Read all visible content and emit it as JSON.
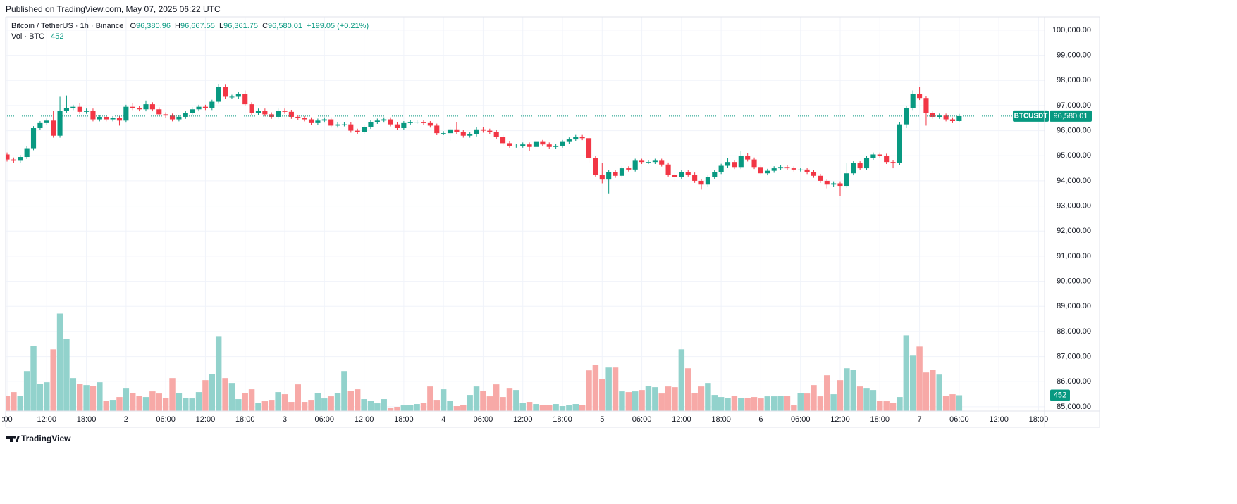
{
  "header": {
    "published": "Published on TradingView.com, May 07, 2025 06:22 UTC"
  },
  "chart_data": {
    "type": "candlestick",
    "title": "Bitcoin / TetherUS · 1h · Binance",
    "symbol": "BTCUSDT",
    "legend": {
      "labels": [
        "O",
        "H",
        "L",
        "C"
      ],
      "value_labels": [
        "96,380.96",
        "96,667.55",
        "96,361.75",
        "96,580.01"
      ],
      "change_label": "+199.05 (+0.21%)",
      "volume_title": "Vol · BTC"
    },
    "open": [
      95050,
      94850,
      94800,
      94950,
      95300,
      96100,
      96300,
      96400,
      95800,
      96800,
      96900,
      96950,
      96750,
      96800,
      96450,
      96550,
      96450,
      96500,
      96400,
      96950,
      96900,
      96850,
      97050,
      96850,
      96650,
      96600,
      96450,
      96550,
      96700,
      96850,
      96950,
      96900,
      97150,
      97750,
      97350,
      97350,
      97450,
      97050,
      96700,
      96800,
      96650,
      96550,
      96800,
      96750,
      96550,
      96500,
      96450,
      96300,
      96400,
      96450,
      96200,
      96250,
      96250,
      96000,
      95950,
      96150,
      96350,
      96400,
      96450,
      96250,
      96100,
      96300,
      96350,
      96350,
      96300,
      96200,
      95900,
      95900,
      96050,
      95950,
      95800,
      95850,
      96050,
      96000,
      95950,
      95750,
      95500,
      95400,
      95400,
      95450,
      95350,
      95550,
      95450,
      95350,
      95400,
      95550,
      95650,
      95750,
      95700,
      94900,
      94250,
      94050,
      94350,
      94200,
      94500,
      94450,
      94800,
      94750,
      94750,
      94800,
      94650,
      94250,
      94150,
      94350,
      94250,
      94000,
      93850,
      94150,
      94350,
      94600,
      94750,
      94550,
      95000,
      94850,
      94550,
      94300,
      94400,
      94500,
      94550,
      94500,
      94450,
      94450,
      94350,
      94200,
      94000,
      93850,
      93900,
      93800,
      94300,
      94700,
      94500,
      94900,
      95050,
      95000,
      94750,
      94700,
      96250,
      96900,
      97450,
      97300,
      96700,
      96550,
      96600,
      96450,
      96380.96
    ],
    "high": [
      95130,
      94930,
      95030,
      95380,
      96180,
      96380,
      96480,
      96800,
      97350,
      97400,
      97030,
      97100,
      96880,
      96880,
      96630,
      96630,
      96580,
      96580,
      97030,
      97100,
      96980,
      97200,
      97130,
      96930,
      96730,
      96680,
      96630,
      96780,
      96930,
      97030,
      97030,
      97230,
      97850,
      97830,
      97430,
      97530,
      97600,
      97130,
      96880,
      96880,
      96730,
      96880,
      96880,
      96830,
      96630,
      96580,
      96530,
      96480,
      96530,
      96530,
      96330,
      96330,
      96330,
      96080,
      96230,
      96430,
      96480,
      96530,
      96530,
      96330,
      96380,
      96430,
      96430,
      96430,
      96380,
      96280,
      95980,
      96130,
      96350,
      96030,
      95930,
      96130,
      96130,
      96080,
      96030,
      95830,
      95580,
      95480,
      95530,
      95530,
      95630,
      95630,
      95530,
      95480,
      95630,
      95730,
      95830,
      95830,
      95780,
      94980,
      94700,
      94430,
      94430,
      94580,
      94580,
      94880,
      94880,
      94830,
      94880,
      94880,
      94730,
      94330,
      94430,
      94430,
      94330,
      94080,
      94230,
      94430,
      94680,
      94900,
      94830,
      95200,
      95100,
      94930,
      94630,
      94480,
      94580,
      94630,
      94630,
      94580,
      94530,
      94530,
      94430,
      94280,
      94080,
      93980,
      93980,
      94700,
      94780,
      94780,
      94980,
      95130,
      95130,
      95080,
      94830,
      96330,
      96980,
      97600,
      97750,
      97380,
      96780,
      96680,
      96680,
      96530,
      96667.55
    ],
    "low": [
      94770,
      94720,
      94720,
      94870,
      95220,
      96020,
      96220,
      95720,
      95720,
      96720,
      96820,
      96670,
      96670,
      96370,
      96370,
      96370,
      96370,
      96200,
      96320,
      96820,
      96770,
      96770,
      96770,
      96570,
      96520,
      96370,
      96370,
      96470,
      96620,
      96770,
      96820,
      96820,
      97070,
      97270,
      97270,
      97270,
      96970,
      96620,
      96620,
      96570,
      96470,
      96470,
      96670,
      96470,
      96420,
      96370,
      96220,
      96220,
      96320,
      96120,
      96120,
      96170,
      95920,
      95870,
      95870,
      96070,
      96270,
      96320,
      96170,
      96020,
      96020,
      96220,
      96270,
      96220,
      96120,
      95820,
      95820,
      95600,
      95870,
      95720,
      95720,
      95770,
      95920,
      95870,
      95670,
      95420,
      95320,
      95320,
      95320,
      95200,
      95270,
      95370,
      95270,
      95270,
      95320,
      95470,
      95570,
      95620,
      94700,
      94170,
      93900,
      93500,
      94120,
      94120,
      94370,
      94370,
      94670,
      94670,
      94670,
      94570,
      94170,
      94000,
      94070,
      94170,
      93920,
      93650,
      93770,
      94070,
      94270,
      94520,
      94470,
      94470,
      94770,
      94470,
      94220,
      94220,
      94320,
      94420,
      94420,
      94370,
      94370,
      94270,
      94120,
      93920,
      93700,
      93770,
      93400,
      93720,
      94220,
      94420,
      94420,
      94820,
      94920,
      94670,
      94500,
      94620,
      96100,
      96820,
      97220,
      96200,
      96470,
      96470,
      96370,
      96300,
      96361.75
    ],
    "close": [
      94850,
      94800,
      94950,
      95300,
      96100,
      96300,
      96400,
      95800,
      96800,
      96900,
      96950,
      96750,
      96800,
      96450,
      96550,
      96450,
      96500,
      96400,
      96950,
      96900,
      96850,
      97050,
      96850,
      96650,
      96600,
      96450,
      96550,
      96700,
      96850,
      96950,
      96900,
      97150,
      97750,
      97350,
      97350,
      97450,
      97050,
      96700,
      96800,
      96650,
      96550,
      96800,
      96750,
      96550,
      96500,
      96450,
      96300,
      96400,
      96450,
      96200,
      96250,
      96250,
      96000,
      95950,
      96150,
      96350,
      96400,
      96450,
      96250,
      96100,
      96300,
      96350,
      96350,
      96300,
      96200,
      95900,
      95900,
      96050,
      95950,
      95800,
      95850,
      96050,
      96000,
      95950,
      95750,
      95500,
      95400,
      95400,
      95450,
      95350,
      95550,
      95450,
      95350,
      95400,
      95550,
      95650,
      95750,
      95700,
      94900,
      94250,
      94050,
      94350,
      94200,
      94500,
      94450,
      94800,
      94750,
      94750,
      94800,
      94650,
      94250,
      94150,
      94350,
      94250,
      94000,
      93850,
      94150,
      94350,
      94600,
      94750,
      94550,
      95000,
      94850,
      94550,
      94300,
      94400,
      94500,
      94550,
      94500,
      94450,
      94450,
      94350,
      94200,
      94000,
      93850,
      93900,
      93800,
      94300,
      94700,
      94500,
      94900,
      95050,
      95000,
      94750,
      94700,
      96250,
      96900,
      97450,
      97300,
      96700,
      96550,
      96600,
      96450,
      96380.96,
      96580.01
    ],
    "volume": [
      440,
      540,
      440,
      1140,
      1860,
      780,
      820,
      1760,
      2780,
      2060,
      940,
      780,
      740,
      720,
      820,
      300,
      320,
      400,
      660,
      520,
      440,
      400,
      560,
      500,
      380,
      940,
      520,
      380,
      360,
      540,
      880,
      1060,
      2120,
      940,
      800,
      340,
      520,
      620,
      240,
      280,
      320,
      540,
      480,
      260,
      760,
      260,
      320,
      520,
      360,
      420,
      520,
      1140,
      580,
      620,
      340,
      300,
      220,
      340,
      100,
      120,
      160,
      180,
      200,
      240,
      700,
      320,
      620,
      300,
      140,
      180,
      460,
      700,
      580,
      420,
      760,
      400,
      660,
      600,
      240,
      260,
      200,
      180,
      180,
      200,
      140,
      160,
      200,
      180,
      1160,
      1320,
      920,
      1240,
      1240,
      560,
      540,
      560,
      600,
      720,
      680,
      500,
      700,
      680,
      1760,
      1220,
      520,
      700,
      800,
      460,
      400,
      380,
      440,
      380,
      380,
      400,
      360,
      420,
      420,
      440,
      440,
      160,
      520,
      500,
      740,
      420,
      1020,
      480,
      880,
      1220,
      1180,
      700,
      660,
      600,
      300,
      280,
      240,
      400,
      2160,
      1580,
      1840,
      1100,
      1180,
      1040,
      440,
      480,
      452
    ],
    "xlim": [
      0,
      156.7
    ],
    "xticks": [
      {
        "value": 0,
        "label": ":00"
      },
      {
        "value": 6,
        "label": "12:00"
      },
      {
        "value": 12,
        "label": "18:00"
      },
      {
        "value": 18,
        "label": "2"
      },
      {
        "value": 24,
        "label": "06:00"
      },
      {
        "value": 30,
        "label": "12:00"
      },
      {
        "value": 36,
        "label": "18:00"
      },
      {
        "value": 42,
        "label": "3"
      },
      {
        "value": 48,
        "label": "06:00"
      },
      {
        "value": 54,
        "label": "12:00"
      },
      {
        "value": 60,
        "label": "18:00"
      },
      {
        "value": 66,
        "label": "4"
      },
      {
        "value": 72,
        "label": "06:00"
      },
      {
        "value": 78,
        "label": "12:00"
      },
      {
        "value": 84,
        "label": "18:00"
      },
      {
        "value": 90,
        "label": "5"
      },
      {
        "value": 96,
        "label": "06:00"
      },
      {
        "value": 102,
        "label": "12:00"
      },
      {
        "value": 108,
        "label": "18:00"
      },
      {
        "value": 114,
        "label": "6"
      },
      {
        "value": 120,
        "label": "06:00"
      },
      {
        "value": 126,
        "label": "12:00"
      },
      {
        "value": 132,
        "label": "18:00"
      },
      {
        "value": 138,
        "label": "7"
      },
      {
        "value": 144,
        "label": "06:00"
      },
      {
        "value": 150,
        "label": "12:00"
      },
      {
        "value": 156,
        "label": "18:00"
      }
    ],
    "ylim": [
      84830,
      100530
    ],
    "yticks": [
      {
        "value": 85000,
        "label": "85,000.00"
      },
      {
        "value": 86000,
        "label": "86,000.00"
      },
      {
        "value": 87000,
        "label": "87,000.00"
      },
      {
        "value": 88000,
        "label": "88,000.00"
      },
      {
        "value": 89000,
        "label": "89,000.00"
      },
      {
        "value": 90000,
        "label": "90,000.00"
      },
      {
        "value": 91000,
        "label": "91,000.00"
      },
      {
        "value": 92000,
        "label": "92,000.00"
      },
      {
        "value": 93000,
        "label": "93,000.00"
      },
      {
        "value": 94000,
        "label": "94,000.00"
      },
      {
        "value": 95000,
        "label": "95,000.00"
      },
      {
        "value": 96000,
        "label": "96,000.00"
      },
      {
        "value": 97000,
        "label": "97,000.00"
      },
      {
        "value": 98000,
        "label": "98,000.00"
      },
      {
        "value": 99000,
        "label": "99,000.00"
      },
      {
        "value": 100000,
        "label": "100,000.00"
      }
    ],
    "volume_lim": [
      0,
      11200
    ],
    "up_color": "#089981",
    "down_color": "#f23645",
    "up_volume_color": "#92d2cc",
    "down_volume_color": "#f7a9a7",
    "grid": true
  },
  "footer": {
    "brand": "TradingView"
  }
}
